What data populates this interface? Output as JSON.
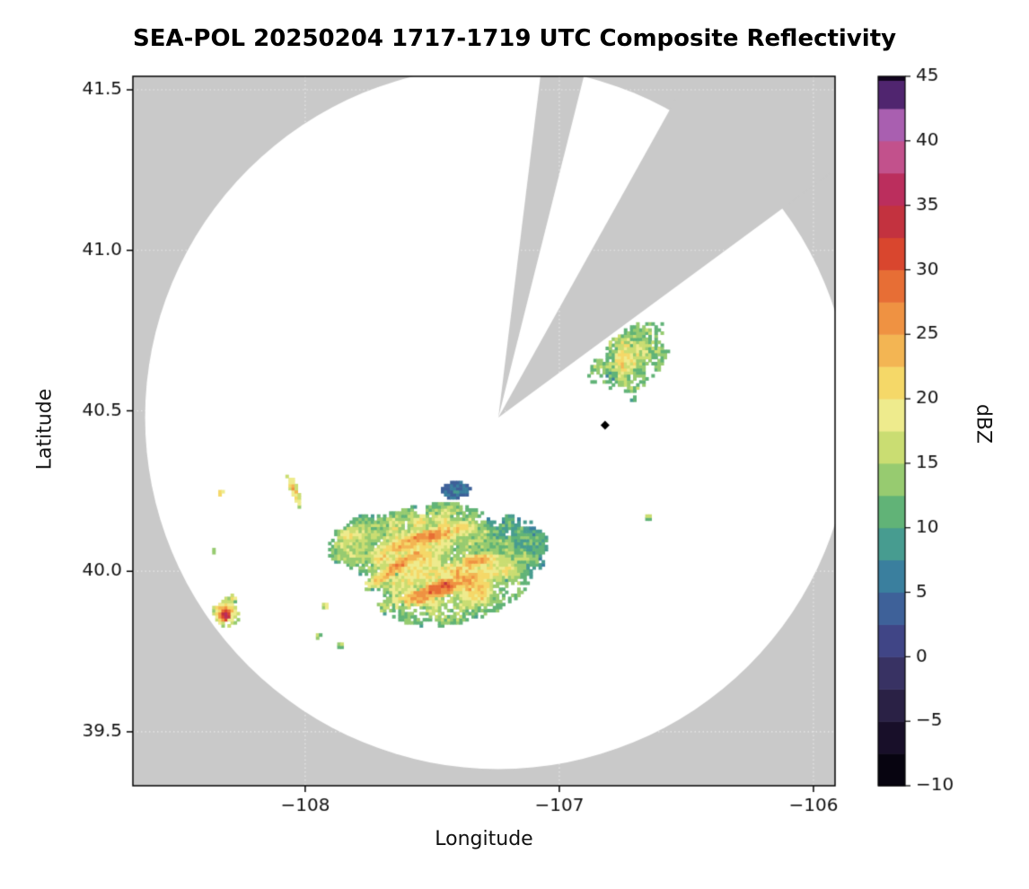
{
  "chart_data": {
    "type": "heatmap",
    "title": "SEA-POL 20250204 1717-1719 UTC Composite Reflectivity",
    "xlabel": "Longitude",
    "ylabel": "Latitude",
    "xlim": [
      -108.678,
      -105.915
    ],
    "ylim": [
      39.332,
      41.542
    ],
    "xticks": [
      -108,
      -107,
      -106
    ],
    "yticks": [
      39.5,
      40.0,
      40.5,
      41.0,
      41.5
    ],
    "grid": {
      "visible": true,
      "style": "dotted"
    },
    "colorbar": {
      "label": "dBZ",
      "min": -10,
      "max": 45,
      "step": 2.5,
      "ticks": [
        -10,
        -5,
        0,
        5,
        10,
        15,
        20,
        25,
        30,
        35,
        40,
        45
      ],
      "band_colors": [
        "#070410",
        "#180f29",
        "#2a2145",
        "#383263",
        "#404586",
        "#3e6199",
        "#3a7f9e",
        "#479c90",
        "#61b377",
        "#97cb70",
        "#cadd72",
        "#eeeb8d",
        "#f5d868",
        "#f3b553",
        "#ef9242",
        "#e76e35",
        "#d9462e",
        "#c3323f",
        "#bb2e5d",
        "#c2518c",
        "#a95fb0",
        "#50256f"
      ],
      "top_cap_color": "#12051f"
    },
    "radar": {
      "center_lon": -107.24,
      "center_lat": 40.479,
      "radius_lon_deg": 1.39,
      "radius_lat_deg": 1.095,
      "coverage_color": "#ffffff",
      "outside_color": "#c9c9c9",
      "blocked_sectors_azimuth_deg": [
        [
          7,
          14
        ],
        [
          29,
          53.5
        ]
      ],
      "site_marker": {
        "lon": -106.82,
        "lat": 40.455,
        "shape": "diamond",
        "color": "#000000"
      }
    },
    "cell_deg": {
      "lon": 0.012,
      "lat": 0.0095
    },
    "noise_scale_deg": {
      "lon": 0.05,
      "lat": 0.04
    },
    "echo_regions": [
      {
        "cx": -107.56,
        "cy": 40.09,
        "rx": 0.3,
        "ry": 0.115,
        "rot": 10,
        "base": 20,
        "varc": 5,
        "varf": 3,
        "edge": 0.55,
        "frag": 0.5,
        "seed": 1
      },
      {
        "cx": -107.42,
        "cy": 39.97,
        "rx": 0.32,
        "ry": 0.135,
        "rot": 8,
        "base": 20,
        "varc": 5,
        "varf": 3,
        "edge": 0.55,
        "frag": 0.5,
        "seed": 2
      },
      {
        "cx": -107.21,
        "cy": 40.07,
        "rx": 0.17,
        "ry": 0.105,
        "rot": 0,
        "base": 13,
        "varc": 4,
        "varf": 3,
        "edge": 0.5,
        "frag": 0.5,
        "seed": 3
      },
      {
        "cx": -107.79,
        "cy": 40.1,
        "rx": 0.13,
        "ry": 0.07,
        "rot": 20,
        "base": 18,
        "varc": 4,
        "varf": 3,
        "edge": 0.55,
        "frag": 0.55,
        "seed": 4
      },
      {
        "cx": -107.52,
        "cy": 40.105,
        "rx": 0.24,
        "ry": 0.03,
        "rot": 12,
        "base": 27,
        "varc": 4,
        "varf": 3,
        "edge": 0.5,
        "frag": 0.4,
        "seed": 5
      },
      {
        "cx": -107.46,
        "cy": 39.95,
        "rx": 0.27,
        "ry": 0.035,
        "rot": 14,
        "base": 28,
        "varc": 4,
        "varf": 3,
        "edge": 0.5,
        "frag": 0.4,
        "seed": 6
      },
      {
        "cx": -107.63,
        "cy": 40.02,
        "rx": 0.16,
        "ry": 0.028,
        "rot": 28,
        "base": 27,
        "varc": 3,
        "varf": 3,
        "edge": 0.5,
        "frag": 0.4,
        "seed": 7
      },
      {
        "cx": -107.33,
        "cy": 40.035,
        "rx": 0.1,
        "ry": 0.025,
        "rot": 8,
        "base": 25,
        "varc": 3,
        "varf": 2,
        "edge": 0.5,
        "frag": 0.45,
        "seed": 8
      },
      {
        "cx": -107.41,
        "cy": 40.252,
        "rx": 0.06,
        "ry": 0.028,
        "rot": 0,
        "base": 7,
        "varc": 3,
        "varf": 2,
        "edge": 0.45,
        "frag": 0.35,
        "seed": 9
      },
      {
        "cx": -108.31,
        "cy": 39.872,
        "rx": 0.055,
        "ry": 0.045,
        "rot": -30,
        "base": 25,
        "varc": 4,
        "varf": 3,
        "edge": 0.5,
        "frag": 0.45,
        "seed": 10
      },
      {
        "cx": -108.315,
        "cy": 39.865,
        "rx": 0.024,
        "ry": 0.019,
        "rot": 0,
        "base": 37,
        "varc": 3,
        "varf": 2,
        "edge": 0.3,
        "frag": 0.2,
        "seed": 11
      },
      {
        "cx": -108.285,
        "cy": 39.915,
        "rx": 0.016,
        "ry": 0.013,
        "rot": 0,
        "base": 20,
        "varc": 3,
        "varf": 2,
        "edge": 0.4,
        "frag": 0.3,
        "seed": 12
      },
      {
        "cx": -108.045,
        "cy": 40.255,
        "rx": 0.062,
        "ry": 0.014,
        "rot": 115,
        "base": 23,
        "varc": 3,
        "varf": 3,
        "edge": 0.4,
        "frag": 0.6,
        "seed": 13
      },
      {
        "cx": -108.335,
        "cy": 40.245,
        "rx": 0.013,
        "ry": 0.011,
        "rot": 0,
        "base": 23,
        "varc": 2,
        "varf": 2,
        "edge": 0.3,
        "frag": 0.3,
        "seed": 14
      },
      {
        "cx": -108.36,
        "cy": 40.065,
        "rx": 0.011,
        "ry": 0.009,
        "rot": 0,
        "base": 17,
        "varc": 2,
        "varf": 2,
        "edge": 0.3,
        "frag": 0.3,
        "seed": 15
      },
      {
        "cx": -107.92,
        "cy": 39.893,
        "rx": 0.014,
        "ry": 0.011,
        "rot": 0,
        "base": 21,
        "varc": 3,
        "varf": 2,
        "edge": 0.4,
        "frag": 0.3,
        "seed": 16
      },
      {
        "cx": -107.86,
        "cy": 39.772,
        "rx": 0.013,
        "ry": 0.01,
        "rot": 0,
        "base": 18,
        "varc": 3,
        "varf": 2,
        "edge": 0.4,
        "frag": 0.3,
        "seed": 17
      },
      {
        "cx": -107.95,
        "cy": 39.8,
        "rx": 0.012,
        "ry": 0.01,
        "rot": 0,
        "base": 16,
        "varc": 3,
        "varf": 2,
        "edge": 0.4,
        "frag": 0.3,
        "seed": 18
      },
      {
        "cx": -106.72,
        "cy": 40.66,
        "rx": 0.185,
        "ry": 0.095,
        "rot": 30,
        "base": 16,
        "varc": 5,
        "varf": 4,
        "edge": 0.5,
        "frag": 0.62,
        "seed": 19
      },
      {
        "cx": -106.78,
        "cy": 40.625,
        "rx": 0.04,
        "ry": 0.028,
        "rot": 0,
        "base": 11,
        "varc": 3,
        "varf": 2,
        "edge": 0.4,
        "frag": 0.4,
        "seed": 20
      },
      {
        "cx": -106.705,
        "cy": 40.535,
        "rx": 0.013,
        "ry": 0.01,
        "rot": 0,
        "base": 12,
        "varc": 2,
        "varf": 2,
        "edge": 0.3,
        "frag": 0.3,
        "seed": 21
      },
      {
        "cx": -106.65,
        "cy": 40.17,
        "rx": 0.011,
        "ry": 0.009,
        "rot": 0,
        "base": 16,
        "varc": 2,
        "varf": 2,
        "edge": 0.3,
        "frag": 0.3,
        "seed": 22
      }
    ]
  }
}
